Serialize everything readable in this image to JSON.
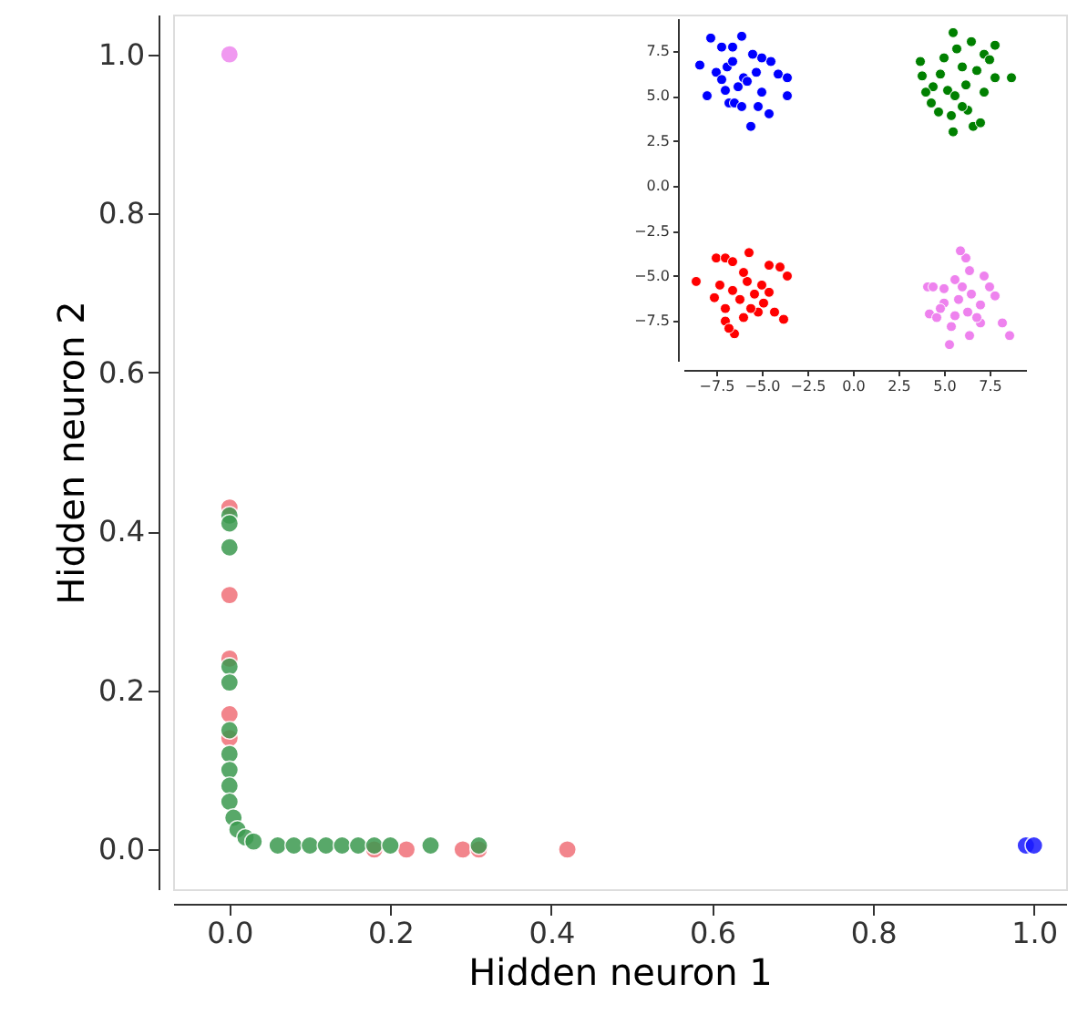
{
  "chart_data": [
    {
      "type": "scatter",
      "xlabel": "Hidden neuron 1",
      "ylabel": "Hidden neuron 2",
      "marker": "circle",
      "grid": false,
      "xlim": [
        -0.07,
        1.04
      ],
      "ylim": [
        -0.05,
        1.05
      ],
      "xticks": [
        {
          "value": 0,
          "label": "0.0"
        },
        {
          "value": 0.2,
          "label": "0.2"
        },
        {
          "value": 0.4,
          "label": "0.4"
        },
        {
          "value": 0.6,
          "label": "0.6"
        },
        {
          "value": 0.8,
          "label": "0.8"
        },
        {
          "value": 1,
          "label": "1.0"
        }
      ],
      "yticks": [
        {
          "value": 0,
          "label": "0.0"
        },
        {
          "value": 0.2,
          "label": "0.2"
        },
        {
          "value": 0.4,
          "label": "0.4"
        },
        {
          "value": 0.6,
          "label": "0.6"
        },
        {
          "value": 0.8,
          "label": "0.8"
        },
        {
          "value": 1,
          "label": "1.0"
        }
      ],
      "series": [
        {
          "color": "#f07078",
          "x": [
            0,
            0,
            0,
            0,
            0,
            0.22,
            0.29,
            0.31,
            0.42,
            0.18
          ],
          "values": [
            0.43,
            0.32,
            0.24,
            0.17,
            0.14,
            0,
            0,
            0,
            0,
            0
          ]
        },
        {
          "color": "#3c9a50",
          "x": [
            0,
            0,
            0,
            0,
            0,
            0,
            0,
            0,
            0,
            0,
            0.005,
            0.01,
            0.02,
            0.03,
            0.06,
            0.08,
            0.1,
            0.12,
            0.14,
            0.16,
            0.18,
            0.2,
            0.25,
            0.31
          ],
          "values": [
            0.42,
            0.41,
            0.38,
            0.23,
            0.21,
            0.15,
            0.12,
            0.1,
            0.08,
            0.06,
            0.04,
            0.025,
            0.015,
            0.01,
            0.005,
            0.005,
            0.005,
            0.005,
            0.005,
            0.005,
            0.005,
            0.005,
            0.005,
            0.005
          ]
        },
        {
          "color": "#1a1aff",
          "x": [
            0.99,
            1.0
          ],
          "values": [
            0.005,
            0.005
          ]
        },
        {
          "color": "#ee88ee",
          "x": [
            0
          ],
          "values": [
            1.0
          ]
        }
      ]
    },
    {
      "type": "scatter",
      "marker": "circle",
      "grid": false,
      "xlim": [
        -9.3,
        9.5
      ],
      "ylim": [
        -9.7,
        9.3
      ],
      "xticks": [
        {
          "value": -7.5,
          "label": "−7.5"
        },
        {
          "value": -5,
          "label": "−5.0"
        },
        {
          "value": -2.5,
          "label": "−2.5"
        },
        {
          "value": 0,
          "label": "0.0"
        },
        {
          "value": 2.5,
          "label": "2.5"
        },
        {
          "value": 5,
          "label": "5.0"
        },
        {
          "value": 7.5,
          "label": "7.5"
        }
      ],
      "yticks": [
        {
          "value": -7.5,
          "label": "−7.5"
        },
        {
          "value": -5,
          "label": "−5.0"
        },
        {
          "value": -2.5,
          "label": "−2.5"
        },
        {
          "value": 0,
          "label": "0.0"
        },
        {
          "value": 2.5,
          "label": "2.5"
        },
        {
          "value": 5,
          "label": "5.0"
        },
        {
          "value": 7.5,
          "label": "7.5"
        }
      ],
      "series": [
        {
          "color": "#0000ff",
          "x": [
            -8.4,
            -7.8,
            -8.0,
            -7.5,
            -7.2,
            -6.6,
            -6.1,
            -7.0,
            -6.8,
            -6.5,
            -6.1,
            -5.6,
            -5.2,
            -4.6,
            -4.1,
            -3.6,
            -3.6,
            -4.5,
            -5.0,
            -5.5,
            -6.0,
            -6.3,
            -5.8,
            -5.3,
            -6.9,
            -7.2,
            -5.0,
            -6.6
          ],
          "values": [
            6.7,
            8.2,
            5.0,
            6.3,
            7.7,
            7.7,
            8.3,
            5.3,
            4.6,
            4.6,
            4.4,
            3.3,
            4.4,
            4.0,
            6.2,
            6.0,
            5.0,
            6.9,
            7.1,
            7.3,
            6.0,
            5.5,
            5.8,
            6.3,
            6.6,
            5.9,
            5.2,
            6.9
          ]
        },
        {
          "color": "#008000",
          "x": [
            3.7,
            3.8,
            4.3,
            4.7,
            5.5,
            5.4,
            6.3,
            6.6,
            7.0,
            7.2,
            7.8,
            8.7,
            7.8,
            7.2,
            6.5,
            5.5,
            5.7,
            6.0,
            5.0,
            4.4,
            5.2,
            6.2,
            6.8,
            4.8,
            6.0,
            7.5,
            4.0,
            5.6
          ],
          "values": [
            6.9,
            6.1,
            4.6,
            4.1,
            3.0,
            3.9,
            4.2,
            3.3,
            3.5,
            5.2,
            6.0,
            6.0,
            7.8,
            7.3,
            8.0,
            8.5,
            7.6,
            6.6,
            7.1,
            5.5,
            5.3,
            5.6,
            6.4,
            6.2,
            4.4,
            7.0,
            5.2,
            5.0
          ]
        },
        {
          "color": "#ff0000",
          "x": [
            -8.6,
            -7.5,
            -7.0,
            -6.6,
            -5.7,
            -4.6,
            -4.0,
            -3.6,
            -4.6,
            -4.3,
            -3.8,
            -5.2,
            -6.0,
            -6.5,
            -7.0,
            -6.8,
            -7.6,
            -7.3,
            -6.6,
            -6.2,
            -5.8,
            -5.4,
            -5.0,
            -6.0,
            -7.0,
            -4.9,
            -5.6
          ],
          "values": [
            -5.3,
            -4.0,
            -4.0,
            -4.2,
            -3.7,
            -4.4,
            -4.5,
            -5.0,
            -5.9,
            -7.0,
            -7.4,
            -7.0,
            -7.3,
            -8.2,
            -7.5,
            -7.9,
            -6.2,
            -5.5,
            -5.8,
            -6.3,
            -5.3,
            -6.0,
            -5.5,
            -4.8,
            -6.8,
            -6.5,
            -6.8
          ]
        },
        {
          "color": "#ee82ee",
          "x": [
            4.1,
            4.4,
            4.2,
            4.6,
            5.3,
            5.4,
            6.4,
            7.0,
            8.2,
            8.6,
            7.8,
            7.5,
            6.2,
            5.9,
            6.4,
            5.6,
            5.0,
            5.0,
            5.8,
            6.5,
            7.0,
            6.8,
            5.6,
            4.8,
            6.0,
            7.2,
            6.3
          ],
          "values": [
            -5.6,
            -5.6,
            -7.1,
            -7.3,
            -8.8,
            -7.8,
            -8.3,
            -7.6,
            -7.6,
            -8.3,
            -6.1,
            -5.6,
            -4.0,
            -3.6,
            -4.7,
            -5.2,
            -5.7,
            -6.5,
            -6.3,
            -6.0,
            -6.6,
            -7.3,
            -7.2,
            -6.8,
            -5.6,
            -5.0,
            -7.0
          ]
        }
      ]
    }
  ]
}
